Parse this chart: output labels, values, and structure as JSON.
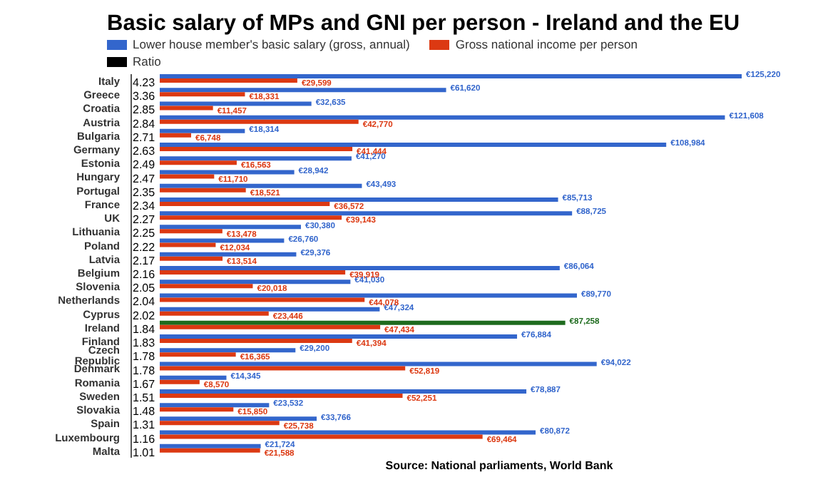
{
  "chart_data": {
    "type": "bar",
    "orientation": "horizontal",
    "title": "Basic salary of MPs and GNI per person - Ireland and the EU",
    "categories": [
      "Italy",
      "Greece",
      "Croatia",
      "Austria",
      "Bulgaria",
      "Germany",
      "Estonia",
      "Hungary",
      "Portugal",
      "France",
      "UK",
      "Lithuania",
      "Poland",
      "Latvia",
      "Belgium",
      "Slovenia",
      "Netherlands",
      "Cyprus",
      "Ireland",
      "Finland",
      "Czech Republic",
      "Denmark",
      "Romania",
      "Sweden",
      "Slovakia",
      "Spain",
      "Luxembourg",
      "Malta"
    ],
    "series": [
      {
        "name": "Lower house member's basic salary (gross, annual)",
        "color": "#3366cc",
        "colors": [
          "#3366cc",
          "#3366cc",
          "#3366cc",
          "#3366cc",
          "#3366cc",
          "#3366cc",
          "#3366cc",
          "#3366cc",
          "#3366cc",
          "#3366cc",
          "#3366cc",
          "#3366cc",
          "#3366cc",
          "#3366cc",
          "#3366cc",
          "#3366cc",
          "#3366cc",
          "#3366cc",
          "#1e6b1e",
          "#3366cc",
          "#3366cc",
          "#3366cc",
          "#3366cc",
          "#3366cc",
          "#3366cc",
          "#3366cc",
          "#3366cc",
          "#3366cc"
        ],
        "values": [
          125220,
          61620,
          32635,
          121608,
          18314,
          108984,
          41270,
          28942,
          43493,
          85713,
          88725,
          30380,
          26760,
          29376,
          86064,
          41030,
          89770,
          47324,
          87258,
          76884,
          29200,
          94022,
          14345,
          78887,
          23532,
          33766,
          80872,
          21724
        ],
        "value_labels": [
          "€125,220",
          "€61,620",
          "€32,635",
          "€121,608",
          "€18,314",
          "€108,984",
          "€41,270",
          "€28,942",
          "€43,493",
          "€85,713",
          "€88,725",
          "€30,380",
          "€26,760",
          "€29,376",
          "€86,064",
          "€41,030",
          "€89,770",
          "€47,324",
          "€87,258",
          "€76,884",
          "€29,200",
          "€94,022",
          "€14,345",
          "€78,887",
          "€23,532",
          "€33,766",
          "€80,872",
          "€21,724"
        ]
      },
      {
        "name": "Gross national income per person",
        "color": "#dc3912",
        "values": [
          29599,
          18331,
          11457,
          42770,
          6748,
          41444,
          16563,
          11710,
          18521,
          36572,
          39143,
          13478,
          12034,
          13514,
          39919,
          20018,
          44078,
          23446,
          47434,
          41394,
          16365,
          52819,
          8570,
          52251,
          15850,
          25738,
          69464,
          21588
        ],
        "value_labels": [
          "€29,599",
          "€18,331",
          "€11,457",
          "€42,770",
          "€6,748",
          "€41,444",
          "€16,563",
          "€11,710",
          "€18,521",
          "€36,572",
          "€39,143",
          "€13,478",
          "€12,034",
          "€13,514",
          "€39,919",
          "€20,018",
          "€44,078",
          "€23,446",
          "€47,434",
          "€41,394",
          "€16,365",
          "€52,819",
          "€8,570",
          "€52,251",
          "€15,850",
          "€25,738",
          "€69,464",
          "€21,588"
        ]
      },
      {
        "name": "Ratio",
        "color": "#000000",
        "values": [
          4.23,
          3.36,
          2.85,
          2.84,
          2.71,
          2.63,
          2.49,
          2.47,
          2.35,
          2.34,
          2.27,
          2.25,
          2.22,
          2.17,
          2.16,
          2.05,
          2.04,
          2.02,
          1.84,
          1.83,
          1.78,
          1.78,
          1.67,
          1.51,
          1.48,
          1.31,
          1.16,
          1.01
        ],
        "value_labels": [
          "4.23",
          "3.36",
          "2.85",
          "2.84",
          "2.71",
          "2.63",
          "2.49",
          "2.47",
          "2.35",
          "2.34",
          "2.27",
          "2.25",
          "2.22",
          "2.17",
          "2.16",
          "2.05",
          "2.04",
          "2.02",
          "1.84",
          "1.83",
          "1.78",
          "1.78",
          "1.67",
          "1.51",
          "1.48",
          "1.31",
          "1.16",
          "1.01"
        ]
      }
    ],
    "tick_labels": "y",
    "legend": "top left",
    "annotations": [
      "Source: National parliaments, World Bank"
    ]
  }
}
